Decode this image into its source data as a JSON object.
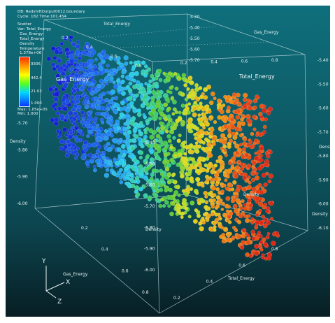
{
  "header": {
    "db": "DB: RedshiftOutput0012.boundary",
    "cycle": "Cycle: 182   Time:101.454",
    "plot_type": "Scatter",
    "var": "Var: Total_Energy",
    "dims": [
      "Gas_Energy",
      "Total_Energy",
      "Density"
    ],
    "color_var": "Temperature",
    "color_val": "1.378e+06",
    "legend_ticks": [
      "9306",
      "442.4",
      "21.03",
      "1.000"
    ],
    "max": "Max: 1.05e+05",
    "min": "Min: 1.000"
  },
  "axes": {
    "gas_energy": "Gas_Energy",
    "total_energy": "Total_Energy",
    "density": "Density",
    "triad_x": "X",
    "triad_y": "Y",
    "triad_z": "Z"
  },
  "ticks": {
    "top_fraction": [
      "0.2",
      "0.4",
      "0.6",
      "0.8"
    ],
    "top_right_fraction": [
      "0.2",
      "0.4",
      "0.6",
      "0.8"
    ],
    "density_right": [
      "-5.40",
      "-5.50",
      "-5.60",
      "-5.70",
      "-5.80",
      "-5.90",
      "-6.00",
      "-6.10"
    ],
    "density_left": [
      "-5.70",
      "-5.80",
      "-5.90",
      "-6.00"
    ],
    "center_vertical": [
      "-5.40",
      "-5.50",
      "-5.60",
      "-5.70",
      "-5.80",
      "-5.90",
      "-6.00"
    ],
    "bottom_fraction": [
      "0.2",
      "0.4",
      "0.6",
      "0.8"
    ],
    "bottom_right_fraction": [
      "0.2",
      "0.4",
      "0.6",
      "0.8"
    ],
    "top_neg": [
      "-5.30",
      "-5.40",
      "-5.50",
      "-5.60",
      "-5.70"
    ]
  },
  "colors": {
    "bg_top": "#0f6f7c",
    "bg_bottom": "#081e24",
    "hot": "#e8321c",
    "cold": "#1a2fd6"
  }
}
